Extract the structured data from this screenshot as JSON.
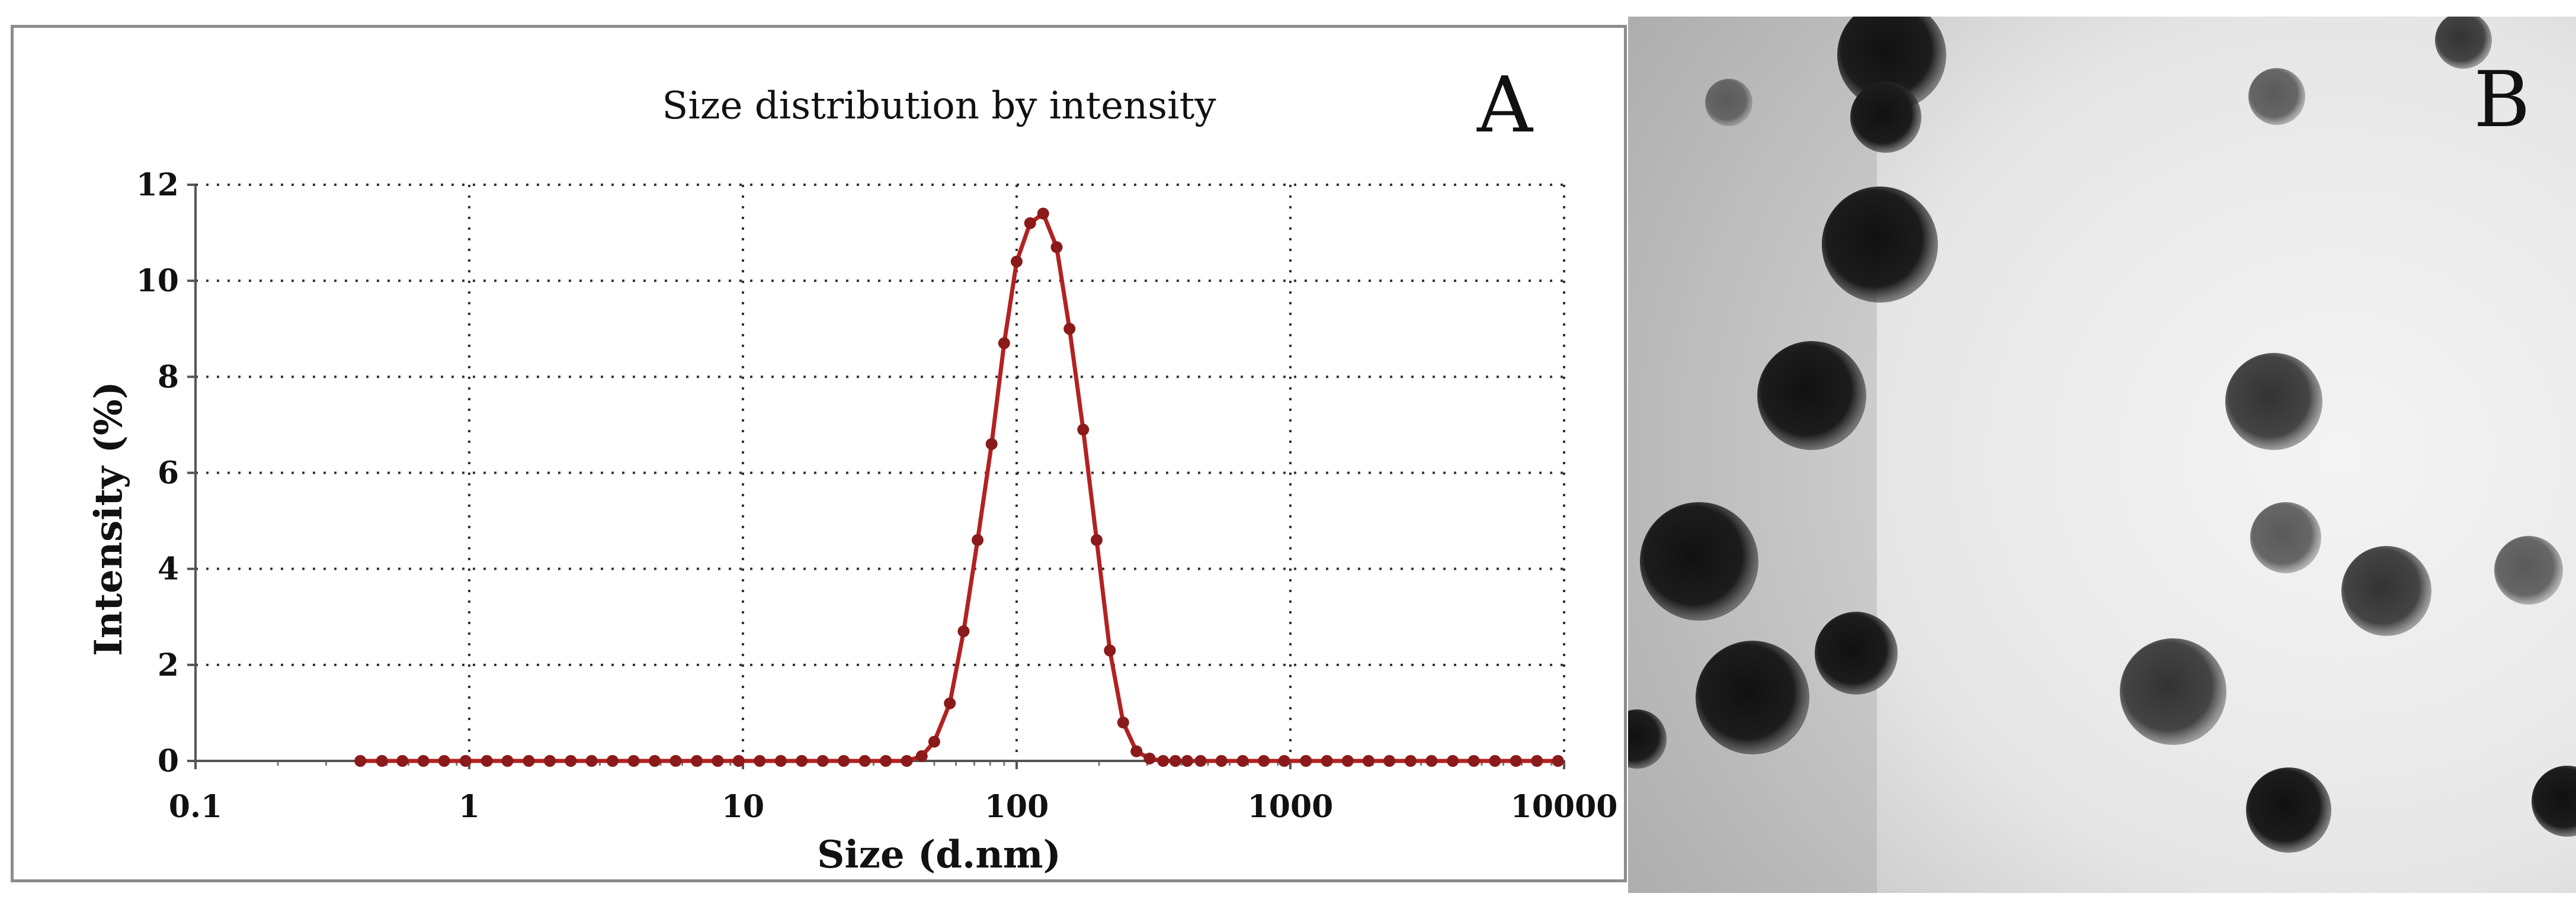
{
  "panel_a": {
    "letter": "A"
  },
  "panel_b": {
    "letter": "B"
  },
  "chart_data": {
    "type": "line",
    "title": "Size distribution by intensity",
    "xlabel": "Size (d.nm)",
    "ylabel": "Intensity (%)",
    "xscale": "log",
    "xlim": [
      0.1,
      10000
    ],
    "ylim": [
      0,
      12
    ],
    "xticks": [
      0.1,
      1,
      10,
      100,
      1000,
      10000
    ],
    "xtick_labels": [
      "0.1",
      "1",
      "10",
      "100",
      "1000",
      "10000"
    ],
    "yticks": [
      0,
      2,
      4,
      6,
      8,
      10,
      12
    ],
    "ytick_labels": [
      "0",
      "2",
      "4",
      "6",
      "8",
      "10",
      "12"
    ],
    "grid": true,
    "series": [
      {
        "name": "Intensity",
        "color": "#b22222",
        "marker_color": "#8b1a1a",
        "x": [
          0.4,
          0.48,
          0.57,
          0.68,
          0.81,
          0.97,
          1.16,
          1.38,
          1.65,
          1.97,
          2.35,
          2.8,
          3.34,
          3.99,
          4.76,
          5.68,
          6.78,
          8.09,
          9.65,
          11.52,
          13.75,
          16.4,
          19.57,
          23.36,
          27.87,
          33.26,
          39.69,
          45.0,
          50.0,
          57.0,
          64.0,
          72.0,
          81.0,
          90.0,
          100.0,
          112.0,
          125.0,
          140.0,
          156.0,
          175.0,
          196.0,
          219.0,
          245.0,
          274.0,
          306.0,
          343.0,
          380.0,
          420.0,
          470.0,
          560.0,
          670.0,
          800.0,
          950.0,
          1140.0,
          1360.0,
          1620.0,
          1930.0,
          2300.0,
          2750.0,
          3280.0,
          3920.0,
          4680.0,
          5590.0,
          6670.0,
          7960.0,
          9500.0
        ],
        "y": [
          0,
          0,
          0,
          0,
          0,
          0,
          0,
          0,
          0,
          0,
          0,
          0,
          0,
          0,
          0,
          0,
          0,
          0,
          0,
          0,
          0,
          0,
          0,
          0,
          0,
          0,
          0,
          0.1,
          0.4,
          1.2,
          2.7,
          4.6,
          6.6,
          8.7,
          10.4,
          11.2,
          11.4,
          10.7,
          9.0,
          6.9,
          4.6,
          2.3,
          0.8,
          0.2,
          0.05,
          0,
          0,
          0,
          0,
          0,
          0,
          0,
          0,
          0,
          0,
          0,
          0,
          0,
          0,
          0,
          0,
          0,
          0,
          0,
          0,
          0
        ]
      }
    ]
  }
}
